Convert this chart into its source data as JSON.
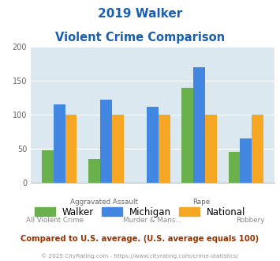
{
  "title_line1": "2019 Walker",
  "title_line2": "Violent Crime Comparison",
  "categories": [
    "All Violent Crime",
    "Aggravated Assault",
    "Murder & Mans...",
    "Rape",
    "Robbery"
  ],
  "row1_labels": [
    "",
    "Aggravated Assault",
    "",
    "Rape",
    ""
  ],
  "row2_labels": [
    "All Violent Crime",
    "",
    "Murder & Mans...",
    "",
    "Robbery"
  ],
  "walker": [
    48,
    35,
    0,
    140,
    46
  ],
  "michigan": [
    115,
    122,
    112,
    170,
    65
  ],
  "national": [
    100,
    100,
    100,
    100,
    100
  ],
  "walker_color": "#6ab04c",
  "michigan_color": "#4186e0",
  "national_color": "#f5a623",
  "ylim": [
    0,
    200
  ],
  "yticks": [
    0,
    50,
    100,
    150,
    200
  ],
  "bg_color": "#dce8f0",
  "title_color": "#1a5fad",
  "footer_text": "Compared to U.S. average. (U.S. average equals 100)",
  "footer_color": "#993300",
  "credit_text": "© 2025 CityRating.com - https://www.cityrating.com/crime-statistics/",
  "credit_color": "#999999",
  "legend_labels": [
    "Walker",
    "Michigan",
    "National"
  ]
}
